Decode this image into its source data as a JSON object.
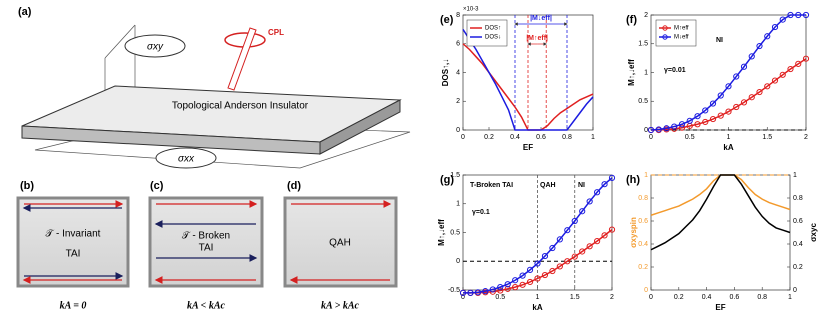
{
  "figure_a": {
    "label": "(a)",
    "sigma_xy": "σxy",
    "cpl": "CPL",
    "title": "Topological Anderson Insulator",
    "sigma_xx": "σxx"
  },
  "panels": [
    {
      "label": "(b)",
      "lines": [
        "𝒯 - Invariant",
        "TAI"
      ],
      "caption": "kA = 0"
    },
    {
      "label": "(c)",
      "lines": [
        "𝒯 - Broken",
        "TAI"
      ],
      "caption": "kA < kAc"
    },
    {
      "label": "(d)",
      "lines": [
        "QAH"
      ],
      "caption": "kA > kAc"
    }
  ],
  "chart_data": [
    {
      "type": "line",
      "label": "(e)",
      "xlabel": "EF",
      "ylabel": "DOS↑,↓",
      "y_multiplier": "×10-3",
      "x": [
        0,
        0.05,
        0.1,
        0.15,
        0.2,
        0.25,
        0.3,
        0.35,
        0.4,
        0.45,
        0.5,
        0.55,
        0.6,
        0.65,
        0.7,
        0.75,
        0.8,
        0.85,
        0.9,
        0.95,
        1
      ],
      "series": [
        {
          "name": "DOS↑",
          "color": "#e02020",
          "values": [
            6.0,
            5.6,
            5.1,
            4.6,
            4.0,
            3.4,
            2.8,
            2.2,
            1.6,
            0.9,
            0,
            0,
            0,
            0.3,
            0.8,
            1.2,
            1.5,
            1.8,
            2.1,
            2.3,
            2.5
          ]
        },
        {
          "name": "DOS↓",
          "color": "#1c1ce0",
          "values": [
            7.0,
            6.3,
            5.6,
            4.8,
            4.0,
            3.2,
            2.3,
            1.4,
            0,
            0,
            0,
            0,
            0,
            0,
            0,
            0,
            0,
            0.6,
            1.2,
            1.8,
            2.3
          ]
        }
      ],
      "vlines": [
        {
          "value": 0.4,
          "color": "#1c1ce0"
        },
        {
          "value": 0.8,
          "color": "#1c1ce0"
        },
        {
          "value": 0.5,
          "color": "#e02020"
        },
        {
          "value": 0.64,
          "color": "#e02020"
        }
      ],
      "annotations": [
        "|M↓eff|",
        "|M↑eff|"
      ],
      "xlim": [
        0,
        1
      ],
      "xticks": [
        0,
        0.2,
        0.4,
        0.6,
        0.8,
        1
      ],
      "ylim": [
        0,
        8
      ],
      "yticks": [
        0,
        2,
        4,
        6,
        8
      ],
      "legend": "upper left",
      "markers": false
    },
    {
      "type": "line",
      "label": "(f)",
      "xlabel": "kA",
      "ylabel": "M↑,↓eff",
      "x": [
        0,
        0.1,
        0.2,
        0.3,
        0.4,
        0.5,
        0.6,
        0.7,
        0.8,
        0.9,
        1,
        1.1,
        1.2,
        1.3,
        1.4,
        1.5,
        1.6,
        1.7,
        1.8,
        1.9,
        2
      ],
      "series": [
        {
          "name": "M↑eff",
          "color": "#e02020",
          "values": [
            0,
            0,
            0.01,
            0.02,
            0.04,
            0.07,
            0.1,
            0.14,
            0.19,
            0.25,
            0.32,
            0.4,
            0.48,
            0.57,
            0.66,
            0.76,
            0.86,
            0.96,
            1.06,
            1.15,
            1.24
          ]
        },
        {
          "name": "M↓eff",
          "color": "#1c1ce0",
          "values": [
            0,
            0.01,
            0.03,
            0.06,
            0.1,
            0.16,
            0.24,
            0.34,
            0.46,
            0.6,
            0.76,
            0.93,
            1.1,
            1.28,
            1.46,
            1.63,
            1.79,
            1.92,
            2,
            2,
            2
          ]
        }
      ],
      "hlines": [
        {
          "value": 0,
          "color": "#000000"
        }
      ],
      "annotations": [
        "NI",
        "γ=0.01"
      ],
      "xlim": [
        0,
        2
      ],
      "xticks": [
        0,
        0.5,
        1,
        1.5,
        2
      ],
      "ylim": [
        0,
        2
      ],
      "yticks": [
        0,
        0.5,
        1,
        1.5,
        2
      ],
      "legend": "upper left",
      "markers": true
    },
    {
      "type": "line",
      "label": "(g)",
      "xlabel": "kA",
      "ylabel": "M↑,↓eff",
      "x": [
        0,
        0.1,
        0.2,
        0.3,
        0.4,
        0.5,
        0.6,
        0.7,
        0.8,
        0.9,
        1,
        1.1,
        1.2,
        1.3,
        1.4,
        1.5,
        1.6,
        1.7,
        1.8,
        1.9,
        2
      ],
      "series": [
        {
          "name": "M↑eff",
          "color": "#e02020",
          "values": [
            -0.55,
            -0.55,
            -0.55,
            -0.54,
            -0.53,
            -0.51,
            -0.48,
            -0.45,
            -0.41,
            -0.36,
            -0.3,
            -0.24,
            -0.17,
            -0.09,
            0,
            0.08,
            0.17,
            0.26,
            0.35,
            0.45,
            0.55
          ]
        },
        {
          "name": "M↓eff",
          "color": "#1c1ce0",
          "values": [
            -0.55,
            -0.55,
            -0.54,
            -0.52,
            -0.49,
            -0.45,
            -0.4,
            -0.33,
            -0.25,
            -0.15,
            -0.04,
            0.09,
            0.23,
            0.38,
            0.54,
            0.7,
            0.87,
            1.04,
            1.2,
            1.34,
            1.45
          ]
        }
      ],
      "vlines": [
        {
          "value": 1,
          "color": "#555555"
        },
        {
          "value": 1.5,
          "color": "#555555"
        }
      ],
      "hlines": [
        {
          "value": 0,
          "color": "#000000"
        }
      ],
      "annotations": [
        "T-Broken TAI",
        "QAH",
        "NI",
        "γ=0.1"
      ],
      "xlim": [
        0,
        2
      ],
      "xticks": [
        0,
        0.5,
        1,
        1.5,
        2
      ],
      "ylim": [
        -0.5,
        1.5
      ],
      "yticks": [
        -0.5,
        0,
        0.5,
        1,
        1.5
      ],
      "markers": true
    },
    {
      "type": "line",
      "label": "(h)",
      "xlabel": "EF",
      "ylabel": "σxyspin",
      "y2label": "σxyc",
      "x": [
        0,
        0.05,
        0.1,
        0.15,
        0.2,
        0.25,
        0.3,
        0.35,
        0.4,
        0.45,
        0.5,
        0.55,
        0.6,
        0.65,
        0.7,
        0.75,
        0.8,
        0.85,
        0.9,
        0.95,
        1
      ],
      "series": [
        {
          "name": "σxyspin",
          "color": "#f39a2c",
          "values": [
            0.65,
            0.67,
            0.69,
            0.71,
            0.73,
            0.76,
            0.79,
            0.83,
            0.88,
            0.95,
            1,
            1,
            1,
            0.96,
            0.89,
            0.83,
            0.79,
            0.76,
            0.74,
            0.72,
            0.7
          ]
        },
        {
          "name": "σxyc",
          "color": "#000000",
          "axis": "y2",
          "values": [
            0.35,
            0.38,
            0.41,
            0.45,
            0.49,
            0.55,
            0.61,
            0.69,
            0.79,
            0.9,
            1,
            1,
            1,
            0.92,
            0.82,
            0.72,
            0.64,
            0.58,
            0.54,
            0.52,
            0.5
          ]
        }
      ],
      "hlines": [
        {
          "value": 1,
          "color": "#f39a2c"
        }
      ],
      "xlim": [
        0,
        1
      ],
      "xticks": [
        0,
        0.2,
        0.4,
        0.6,
        0.8,
        1
      ],
      "ylim": [
        0,
        1
      ],
      "yticks": [
        0,
        0.2,
        0.4,
        0.6,
        0.8,
        1
      ],
      "y2lim": [
        0,
        1
      ],
      "y2ticks": [
        0,
        0.2,
        0.4,
        0.6,
        0.8,
        1
      ],
      "markers": false
    }
  ]
}
